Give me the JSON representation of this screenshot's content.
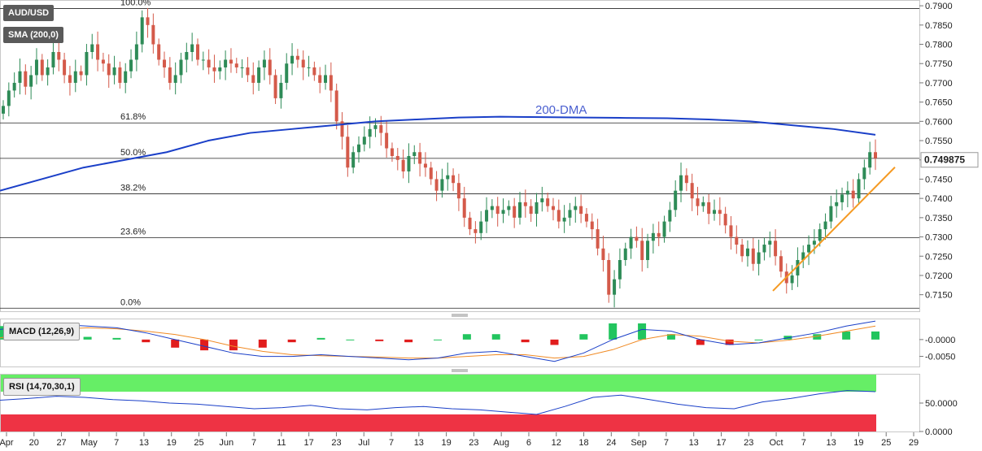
{
  "panels": {
    "symbol": "AUD/USD",
    "sma_label": "SMA (200,0)",
    "macd_label": "MACD (12,26,9)",
    "rsi_label": "RSI (14,70,30,1)",
    "last_price": "0.749875",
    "dma_label": "200-DMA"
  },
  "colors": {
    "up": "#2e8b57",
    "down": "#d45a4a",
    "sma": "#1a3fc8",
    "trendline": "#f59a23",
    "macd_line": "#1a3fc8",
    "signal_line": "#f08a24",
    "hist_pos": "#22c55e",
    "hist_neg": "#e11d1d",
    "rsi_overbought": "#66ee66",
    "rsi_oversold": "#ee3344",
    "rsi_line": "#1a3fc8"
  },
  "chart_data": [
    {
      "type": "candlestick",
      "title": "AUD/USD",
      "ylim": [
        0.7105,
        0.7915
      ],
      "y_ticks": [
        "0.7150",
        "0.7200",
        "0.7250",
        "0.7300",
        "0.7350",
        "0.7400",
        "0.7450",
        "0.7500",
        "0.7550",
        "0.7600",
        "0.7650",
        "0.7700",
        "0.7750",
        "0.7800",
        "0.7850",
        "0.7900"
      ],
      "x_ticks": [
        "Apr",
        "20",
        "27",
        "May",
        "7",
        "13",
        "19",
        "25",
        "Jun",
        "7",
        "11",
        "17",
        "23",
        "Jul",
        "7",
        "13",
        "19",
        "23",
        "Aug",
        "6",
        "12",
        "18",
        "24",
        "Sep",
        "7",
        "13",
        "17",
        "23",
        "Oct",
        "7",
        "13",
        "19",
        "25",
        "29"
      ],
      "fibonacci": [
        {
          "label": "100.0%",
          "value": 0.7893
        },
        {
          "label": "61.8%",
          "value": 0.7596
        },
        {
          "label": "50.0%",
          "value": 0.7504
        },
        {
          "label": "38.2%",
          "value": 0.7412
        },
        {
          "label": "23.6%",
          "value": 0.7298
        },
        {
          "label": "0.0%",
          "value": 0.7115
        }
      ],
      "candles_close": [
        0.764,
        0.768,
        0.77,
        0.773,
        0.769,
        0.772,
        0.776,
        0.772,
        0.774,
        0.778,
        0.776,
        0.772,
        0.77,
        0.773,
        0.772,
        0.778,
        0.78,
        0.776,
        0.775,
        0.772,
        0.774,
        0.77,
        0.773,
        0.776,
        0.78,
        0.787,
        0.785,
        0.78,
        0.776,
        0.774,
        0.77,
        0.772,
        0.776,
        0.778,
        0.78,
        0.776,
        0.776,
        0.774,
        0.773,
        0.774,
        0.776,
        0.775,
        0.774,
        0.774,
        0.772,
        0.77,
        0.774,
        0.776,
        0.772,
        0.766,
        0.77,
        0.775,
        0.777,
        0.776,
        0.774,
        0.774,
        0.772,
        0.77,
        0.772,
        0.768,
        0.76,
        0.756,
        0.748,
        0.752,
        0.754,
        0.756,
        0.758,
        0.759,
        0.757,
        0.753,
        0.751,
        0.75,
        0.747,
        0.751,
        0.752,
        0.749,
        0.748,
        0.745,
        0.742,
        0.745,
        0.746,
        0.744,
        0.74,
        0.735,
        0.732,
        0.731,
        0.734,
        0.737,
        0.738,
        0.736,
        0.737,
        0.738,
        0.735,
        0.739,
        0.738,
        0.736,
        0.739,
        0.74,
        0.738,
        0.737,
        0.734,
        0.735,
        0.737,
        0.738,
        0.736,
        0.734,
        0.732,
        0.727,
        0.724,
        0.715,
        0.719,
        0.724,
        0.727,
        0.73,
        0.729,
        0.724,
        0.729,
        0.731,
        0.73,
        0.734,
        0.737,
        0.742,
        0.746,
        0.744,
        0.74,
        0.738,
        0.739,
        0.736,
        0.737,
        0.736,
        0.733,
        0.73,
        0.728,
        0.725,
        0.727,
        0.723,
        0.726,
        0.728,
        0.729,
        0.725,
        0.721,
        0.718,
        0.72,
        0.724,
        0.726,
        0.728,
        0.729,
        0.732,
        0.734,
        0.738,
        0.739,
        0.741,
        0.742,
        0.74,
        0.745,
        0.748,
        0.752,
        0.7504
      ]
    },
    {
      "type": "line",
      "name": "200-DMA",
      "values": [
        0.742,
        0.745,
        0.748,
        0.75,
        0.752,
        0.755,
        0.757,
        0.758,
        0.759,
        0.76,
        0.7605,
        0.761,
        0.7612,
        0.7611,
        0.761,
        0.7609,
        0.7608,
        0.7605,
        0.76,
        0.759,
        0.758,
        0.7565
      ]
    },
    {
      "type": "line",
      "title": "MACD (12,26,9)",
      "y_ticks": [
        "-0.0000",
        "-0.0050"
      ],
      "series": [
        {
          "name": "macd",
          "values": [
            0.003,
            0.004,
            0.0045,
            0.004,
            0.0035,
            0.002,
            0.0,
            -0.002,
            -0.004,
            -0.005,
            -0.005,
            -0.0045,
            -0.005,
            -0.0055,
            -0.006,
            -0.0055,
            -0.004,
            -0.0035,
            -0.005,
            -0.0065,
            -0.004,
            0.0,
            0.003,
            0.0025,
            0.0,
            -0.0015,
            -0.001,
            0.0005,
            0.002,
            0.004,
            0.0055
          ]
        },
        {
          "name": "signal",
          "values": [
            0.0005,
            0.002,
            0.003,
            0.0035,
            0.0032,
            0.0025,
            0.0015,
            0.0,
            -0.002,
            -0.0035,
            -0.0045,
            -0.0048,
            -0.005,
            -0.0052,
            -0.0055,
            -0.0055,
            -0.005,
            -0.0045,
            -0.0045,
            -0.0055,
            -0.005,
            -0.003,
            0.0,
            0.0015,
            0.001,
            -0.0005,
            -0.001,
            -0.0002,
            0.001,
            0.0025,
            0.004
          ]
        }
      ]
    },
    {
      "type": "line",
      "title": "RSI (14,70,30,1)",
      "y_ticks": [
        "50.0000",
        "0.0000"
      ],
      "values": [
        55,
        58,
        62,
        60,
        56,
        54,
        50,
        48,
        44,
        40,
        42,
        46,
        40,
        38,
        42,
        44,
        40,
        38,
        34,
        30,
        44,
        60,
        64,
        56,
        48,
        42,
        40,
        52,
        58,
        66,
        72,
        70
      ]
    }
  ]
}
